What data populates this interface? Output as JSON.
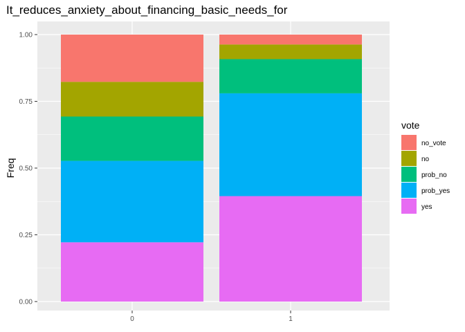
{
  "chart_data": {
    "type": "bar",
    "stacked": true,
    "title": "It_reduces_anxiety_about_financing_basic_needs_for",
    "xlabel": "",
    "ylabel": "Freq",
    "categories": [
      "0",
      "1"
    ],
    "ylim": [
      0,
      1
    ],
    "yticks": [
      "0.00",
      "0.25",
      "0.50",
      "0.75",
      "1.00"
    ],
    "ytick_values": [
      0,
      0.25,
      0.5,
      0.75,
      1.0
    ],
    "grid": true,
    "legend_title": "vote",
    "legend_position": "right",
    "series": [
      {
        "name": "yes",
        "color": "#E76BF3",
        "values": [
          0.222,
          0.395
        ]
      },
      {
        "name": "prob_yes",
        "color": "#00B0F6",
        "values": [
          0.305,
          0.385
        ]
      },
      {
        "name": "prob_no",
        "color": "#00BF7D",
        "values": [
          0.166,
          0.128
        ]
      },
      {
        "name": "no",
        "color": "#A3A500",
        "values": [
          0.13,
          0.055
        ]
      },
      {
        "name": "no_vote",
        "color": "#F8766D",
        "values": [
          0.177,
          0.037
        ]
      }
    ],
    "legend_order": [
      "no_vote",
      "no",
      "prob_no",
      "prob_yes",
      "yes"
    ]
  }
}
